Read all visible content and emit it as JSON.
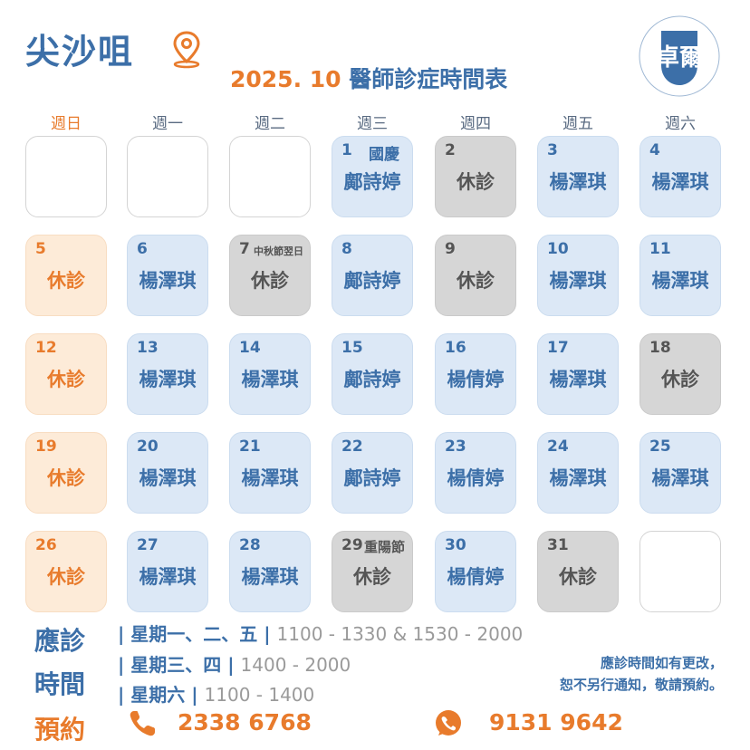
{
  "header": {
    "location": "尖沙咀",
    "year_month": "2025. 10",
    "title": "醫師診症時間表",
    "logo_text": "卓爾"
  },
  "weekdays": [
    "週日",
    "週一",
    "週二",
    "週三",
    "週四",
    "週五",
    "週六"
  ],
  "calendar": {
    "cells": [
      {
        "day": "",
        "note": "",
        "doctor": "",
        "style": "empty"
      },
      {
        "day": "",
        "note": "",
        "doctor": "",
        "style": "empty"
      },
      {
        "day": "",
        "note": "",
        "doctor": "",
        "style": "empty"
      },
      {
        "day": "1",
        "note": "國慶",
        "doctor": "鄺詩婷",
        "style": "blue"
      },
      {
        "day": "2",
        "note": "",
        "doctor": "休診",
        "style": "gray"
      },
      {
        "day": "3",
        "note": "",
        "doctor": "楊澤琪",
        "style": "blue"
      },
      {
        "day": "4",
        "note": "",
        "doctor": "楊澤琪",
        "style": "blue"
      },
      {
        "day": "5",
        "note": "",
        "doctor": "休診",
        "style": "peach"
      },
      {
        "day": "6",
        "note": "",
        "doctor": "楊澤琪",
        "style": "blue"
      },
      {
        "day": "7",
        "note": "中秋節翌日",
        "doctor": "休診",
        "style": "gray"
      },
      {
        "day": "8",
        "note": "",
        "doctor": "鄺詩婷",
        "style": "blue"
      },
      {
        "day": "9",
        "note": "",
        "doctor": "休診",
        "style": "gray"
      },
      {
        "day": "10",
        "note": "",
        "doctor": "楊澤琪",
        "style": "blue"
      },
      {
        "day": "11",
        "note": "",
        "doctor": "楊澤琪",
        "style": "blue"
      },
      {
        "day": "12",
        "note": "",
        "doctor": "休診",
        "style": "peach"
      },
      {
        "day": "13",
        "note": "",
        "doctor": "楊澤琪",
        "style": "blue"
      },
      {
        "day": "14",
        "note": "",
        "doctor": "楊澤琪",
        "style": "blue"
      },
      {
        "day": "15",
        "note": "",
        "doctor": "鄺詩婷",
        "style": "blue"
      },
      {
        "day": "16",
        "note": "",
        "doctor": "楊倩婷",
        "style": "blue"
      },
      {
        "day": "17",
        "note": "",
        "doctor": "楊澤琪",
        "style": "blue"
      },
      {
        "day": "18",
        "note": "",
        "doctor": "休診",
        "style": "gray"
      },
      {
        "day": "19",
        "note": "",
        "doctor": "休診",
        "style": "peach"
      },
      {
        "day": "20",
        "note": "",
        "doctor": "楊澤琪",
        "style": "blue"
      },
      {
        "day": "21",
        "note": "",
        "doctor": "楊澤琪",
        "style": "blue"
      },
      {
        "day": "22",
        "note": "",
        "doctor": "鄺詩婷",
        "style": "blue"
      },
      {
        "day": "23",
        "note": "",
        "doctor": "楊倩婷",
        "style": "blue"
      },
      {
        "day": "24",
        "note": "",
        "doctor": "楊澤琪",
        "style": "blue"
      },
      {
        "day": "25",
        "note": "",
        "doctor": "楊澤琪",
        "style": "blue"
      },
      {
        "day": "26",
        "note": "",
        "doctor": "休診",
        "style": "peach"
      },
      {
        "day": "27",
        "note": "",
        "doctor": "楊澤琪",
        "style": "blue"
      },
      {
        "day": "28",
        "note": "",
        "doctor": "楊澤琪",
        "style": "blue"
      },
      {
        "day": "29",
        "note": "重陽節",
        "doctor": "休診",
        "style": "gray"
      },
      {
        "day": "30",
        "note": "",
        "doctor": "楊倩婷",
        "style": "blue"
      },
      {
        "day": "31",
        "note": "",
        "doctor": "休診",
        "style": "gray"
      },
      {
        "day": "",
        "note": "",
        "doctor": "",
        "style": "empty"
      }
    ]
  },
  "hours": {
    "label_1": "應診",
    "label_2": "時間",
    "lines": [
      {
        "days": "| 星期一、二、五 |",
        "time": "1100 - 1330 & 1530 - 2000"
      },
      {
        "days": "| 星期三、四 |",
        "time": "1400 - 2000"
      },
      {
        "days": "| 星期六 |",
        "time": "1100 - 1400"
      }
    ],
    "notice_1": "應診時間如有更改，",
    "notice_2": "恕不另行通知，敬請預約。"
  },
  "booking": {
    "label": "預約",
    "phone": "2338 6768",
    "whatsapp": "9131 9642"
  },
  "colors": {
    "blue": "#3c6fa8",
    "orange": "#e87b2c",
    "gray": "#d6d6d6"
  }
}
